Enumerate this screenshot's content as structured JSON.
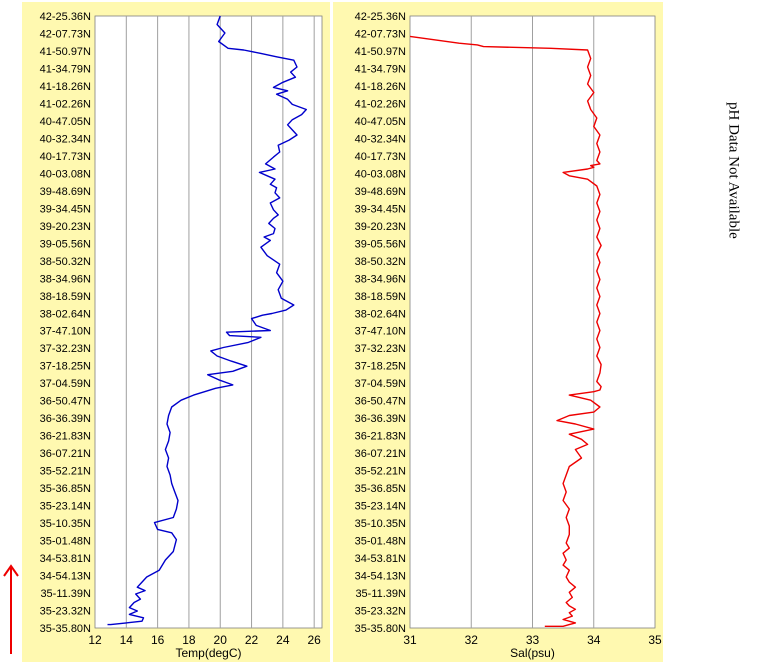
{
  "side_note": "pH Data Not Available",
  "colors": {
    "panel_bg": "#fff9b0",
    "plot_bg": "#ffffff",
    "grid": "#a0a0a0",
    "temp_line": "#0000cc",
    "sal_line": "#ee0000",
    "arrow": "#ee0000"
  },
  "icons": {
    "direction": "red-up-arrow"
  },
  "chart_data": [
    {
      "type": "line",
      "title": "",
      "xlabel": "Temp(degC)",
      "ylabel": "",
      "xlim": [
        12,
        26.5
      ],
      "xticks": [
        12,
        14,
        16,
        18,
        20,
        22,
        24,
        26
      ],
      "ylim": [
        0,
        36
      ],
      "yticks": [
        "42-25.36N",
        "42-07.73N",
        "41-50.97N",
        "41-34.79N",
        "41-18.26N",
        "41-02.26N",
        "40-47.05N",
        "40-32.34N",
        "40-17.73N",
        "40-03.08N",
        "39-48.69N",
        "39-34.45N",
        "39-20.23N",
        "39-05.56N",
        "38-50.32N",
        "38-34.96N",
        "38-18.59N",
        "38-02.64N",
        "37-47.10N",
        "37-32.23N",
        "37-18.25N",
        "37-04.59N",
        "36-50.47N",
        "36-36.39N",
        "36-21.83N",
        "36-07.21N",
        "35-52.21N",
        "35-36.85N",
        "35-23.14N",
        "35-10.35N",
        "35-01.48N",
        "34-53.81N",
        "34-54.13N",
        "35-11.39N",
        "35-23.32N",
        "35-35.80N"
      ],
      "grid": true,
      "series": [
        {
          "x": [
            20.0,
            19.8,
            20.3,
            19.9,
            20.5,
            21.5,
            22.6,
            23.6,
            24.7,
            24.9,
            24.5,
            24.8,
            24.0,
            23.4,
            24.3,
            23.6,
            24.3,
            24.6,
            25.5,
            25.2,
            24.6,
            24.3,
            24.6,
            24.9,
            24.4,
            23.7,
            23.8,
            23.4,
            22.9,
            23.5,
            22.5,
            23.0,
            23.5,
            23.2,
            23.6,
            23.5,
            23.8,
            23.2,
            23.4,
            23.7,
            23.4,
            23.1,
            23.5,
            23.4,
            22.8,
            23.2,
            22.6,
            23.0,
            23.8,
            23.6,
            24.0,
            23.7,
            23.9,
            24.7,
            24.2,
            23.3,
            22.7,
            22.0,
            22.3,
            23.2,
            20.4,
            20.6,
            22.6,
            21.8,
            20.2,
            19.4,
            19.8,
            20.7,
            21.7,
            20.8,
            19.2,
            19.9,
            20.8,
            19.7,
            19.0,
            18.3,
            17.5,
            16.9,
            16.7,
            16.6,
            16.8,
            16.7,
            16.5,
            16.7,
            16.6,
            16.8,
            16.9,
            17.1,
            17.3,
            17.2,
            17.0,
            15.8,
            16.0,
            16.9,
            17.2,
            17.0,
            16.5,
            16.3,
            16.1,
            15.3,
            15.0,
            14.7,
            15.2,
            14.6,
            14.9,
            14.5,
            14.2,
            14.7,
            14.2,
            15.1,
            15.0,
            14.0,
            13.0,
            12.8
          ],
          "y": [
            0.0,
            0.5,
            1.0,
            1.5,
            1.9,
            2.0,
            2.2,
            2.4,
            2.6,
            3.0,
            3.3,
            3.6,
            3.9,
            4.2,
            4.4,
            4.6,
            4.9,
            5.2,
            5.5,
            5.8,
            6.1,
            6.4,
            6.7,
            7.0,
            7.3,
            7.6,
            8.0,
            8.3,
            8.7,
            9.0,
            9.2,
            9.4,
            9.6,
            9.9,
            10.1,
            10.4,
            10.7,
            11.0,
            11.4,
            11.7,
            11.9,
            12.2,
            12.5,
            12.8,
            13.0,
            13.2,
            13.6,
            14.1,
            14.6,
            15.1,
            15.6,
            16.1,
            16.6,
            17.0,
            17.3,
            17.5,
            17.6,
            17.8,
            18.2,
            18.5,
            18.6,
            18.8,
            18.9,
            19.2,
            19.5,
            19.7,
            20.0,
            20.3,
            20.6,
            20.9,
            21.1,
            21.4,
            21.7,
            21.9,
            22.1,
            22.3,
            22.6,
            23.0,
            23.5,
            24.0,
            24.5,
            25.0,
            25.5,
            26.0,
            26.5,
            27.0,
            27.5,
            28.0,
            28.5,
            29.0,
            29.5,
            29.8,
            30.2,
            30.4,
            30.8,
            31.5,
            32.0,
            32.3,
            32.6,
            33.0,
            33.3,
            33.6,
            33.8,
            34.0,
            34.3,
            34.5,
            34.8,
            35.0,
            35.2,
            35.4,
            35.6,
            35.7,
            35.8,
            35.8
          ]
        }
      ]
    },
    {
      "type": "line",
      "title": "",
      "xlabel": "Sal(psu)",
      "ylabel": "",
      "xlim": [
        31,
        35
      ],
      "xticks": [
        31,
        32,
        33,
        34,
        35
      ],
      "ylim": [
        0,
        36
      ],
      "yticks": [
        "42-25.36N",
        "42-07.73N",
        "41-50.97N",
        "41-34.79N",
        "41-18.26N",
        "41-02.26N",
        "40-47.05N",
        "40-32.34N",
        "40-17.73N",
        "40-03.08N",
        "39-48.69N",
        "39-34.45N",
        "39-20.23N",
        "39-05.56N",
        "38-50.32N",
        "38-34.96N",
        "38-18.59N",
        "38-02.64N",
        "37-47.10N",
        "37-32.23N",
        "37-18.25N",
        "37-04.59N",
        "36-50.47N",
        "36-36.39N",
        "36-21.83N",
        "36-07.21N",
        "35-52.21N",
        "35-36.85N",
        "35-23.14N",
        "35-10.35N",
        "35-01.48N",
        "34-53.81N",
        "34-54.13N",
        "35-11.39N",
        "35-23.32N",
        "35-35.80N"
      ],
      "grid": true,
      "series": [
        {
          "x": [
            31.0,
            31.8,
            32.1,
            32.2,
            33.3,
            33.9,
            33.95,
            33.9,
            33.95,
            33.9,
            34.0,
            33.9,
            33.95,
            34.05,
            34.0,
            34.1,
            34.05,
            34.1,
            34.05,
            34.1,
            33.95,
            34.0,
            33.9,
            33.5,
            33.6,
            33.9,
            34.05,
            34.1,
            34.05,
            34.1,
            34.05,
            34.1,
            34.05,
            34.12,
            34.05,
            34.1,
            34.05,
            34.1,
            34.05,
            34.1,
            34.05,
            34.1,
            34.05,
            34.1,
            34.05,
            34.1,
            34.05,
            34.12,
            34.1,
            34.05,
            34.12,
            34.1,
            34.0,
            33.6,
            33.95,
            34.1,
            34.0,
            33.6,
            33.4,
            33.7,
            34.0,
            33.6,
            33.8,
            33.9,
            33.7,
            33.8,
            33.6,
            33.55,
            33.5,
            33.55,
            33.5,
            33.6,
            33.55,
            33.6,
            33.6,
            33.55,
            33.6,
            33.5,
            33.55,
            33.5,
            33.6,
            33.55,
            33.6,
            33.7,
            33.6,
            33.65,
            33.55,
            33.6,
            33.7,
            33.6,
            33.65,
            33.5,
            33.6,
            33.7,
            33.6,
            33.5,
            33.2
          ],
          "y": [
            1.2,
            1.6,
            1.7,
            1.8,
            1.9,
            2.0,
            2.5,
            3.0,
            3.5,
            4.0,
            4.5,
            5.0,
            5.5,
            6.0,
            6.5,
            7.0,
            7.5,
            8.0,
            8.5,
            8.7,
            8.8,
            8.9,
            9.0,
            9.2,
            9.4,
            9.6,
            10.0,
            10.5,
            11.0,
            11.5,
            12.0,
            12.5,
            13.0,
            13.5,
            14.0,
            14.5,
            15.0,
            15.5,
            16.0,
            16.5,
            17.0,
            17.5,
            18.0,
            18.5,
            19.0,
            19.5,
            20.0,
            20.5,
            21.0,
            21.5,
            21.8,
            22.0,
            22.1,
            22.3,
            22.6,
            23.0,
            23.3,
            23.5,
            23.8,
            24.0,
            24.3,
            24.6,
            24.9,
            25.2,
            25.5,
            26.0,
            26.5,
            27.0,
            27.5,
            28.0,
            28.5,
            29.0,
            29.5,
            30.0,
            30.5,
            31.0,
            31.3,
            31.6,
            32.0,
            32.3,
            32.6,
            33.0,
            33.3,
            33.6,
            33.9,
            34.2,
            34.5,
            34.7,
            34.9,
            35.1,
            35.3,
            35.5,
            35.6,
            35.7,
            35.8,
            35.9,
            35.9
          ]
        }
      ]
    }
  ]
}
